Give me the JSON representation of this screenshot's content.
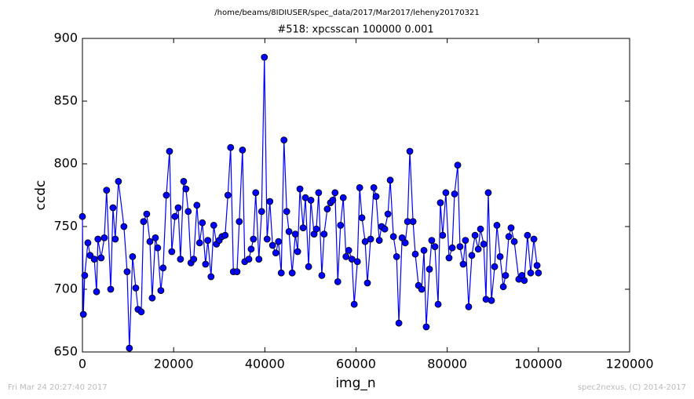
{
  "chart_data": {
    "type": "line",
    "suptitle": "/home/beams/8IDIUSER/spec_data/2017/Mar2017/leheny20170321",
    "title": "#518: xpcsscan 100000 0.001",
    "xlabel": "img_n",
    "ylabel": "ccdc",
    "timestamp": "Fri Mar 24 20:27:40 2017",
    "credit": "spec2nexus, (C) 2014-2017",
    "color": "#0000ff",
    "marker": "circle",
    "xlim": [
      0,
      120000
    ],
    "ylim": [
      650,
      900
    ],
    "xticks": [
      0,
      20000,
      40000,
      60000,
      80000,
      100000,
      120000
    ],
    "yticks": [
      650,
      700,
      750,
      800,
      850,
      900
    ],
    "x": [
      0,
      200,
      500,
      1200,
      1700,
      2600,
      3100,
      3400,
      4100,
      4800,
      5300,
      6200,
      6700,
      7200,
      7900,
      9100,
      9800,
      10300,
      11000,
      11700,
      12200,
      12900,
      13400,
      14100,
      14800,
      15300,
      16000,
      16500,
      17200,
      17700,
      18400,
      19100,
      19600,
      20300,
      21000,
      21500,
      22200,
      22700,
      23200,
      23800,
      24400,
      25100,
      25700,
      26300,
      27000,
      27500,
      28200,
      28800,
      29400,
      30000,
      30600,
      31300,
      31900,
      32500,
      33100,
      33900,
      34400,
      35100,
      35600,
      36500,
      37000,
      37500,
      38000,
      38700,
      39300,
      39900,
      40500,
      41100,
      41700,
      42400,
      43000,
      43600,
      44200,
      44800,
      45300,
      46000,
      46700,
      47200,
      47700,
      48400,
      48900,
      49600,
      50100,
      50800,
      51300,
      51800,
      52500,
      53000,
      53700,
      54400,
      54900,
      55400,
      56000,
      56600,
      57200,
      57800,
      58400,
      59100,
      59600,
      60300,
      60800,
      61300,
      62000,
      62500,
      63200,
      63900,
      64400,
      65100,
      65600,
      66300,
      67000,
      67500,
      68200,
      68900,
      69400,
      70100,
      70800,
      71300,
      71800,
      72500,
      73000,
      73700,
      74400,
      74900,
      75400,
      76100,
      76600,
      77300,
      78000,
      78500,
      79000,
      79700,
      80400,
      81100,
      81600,
      82300,
      82800,
      83500,
      84000,
      84700,
      85400,
      86100,
      86800,
      87300,
      88000,
      88500,
      89000,
      89700,
      90400,
      90900,
      91600,
      92300,
      92800,
      93500,
      94000,
      94700,
      95700,
      96400,
      96900,
      97600,
      98300,
      99000,
      99700,
      100000
    ],
    "values": [
      758,
      680,
      711,
      737,
      727,
      724,
      698,
      740,
      725,
      741,
      779,
      700,
      765,
      740,
      786,
      750,
      714,
      653,
      726,
      701,
      684,
      682,
      754,
      760,
      738,
      693,
      741,
      733,
      699,
      717,
      775,
      810,
      730,
      758,
      765,
      724,
      786,
      780,
      762,
      721,
      724,
      767,
      737,
      753,
      720,
      739,
      710,
      751,
      736,
      739,
      742,
      743,
      775,
      813,
      714,
      714,
      754,
      811,
      722,
      724,
      732,
      740,
      777,
      724,
      762,
      885,
      740,
      770,
      735,
      729,
      738,
      713,
      819,
      762,
      746,
      713,
      744,
      730,
      780,
      749,
      773,
      718,
      771,
      744,
      748,
      777,
      711,
      744,
      764,
      769,
      771,
      777,
      706,
      751,
      773,
      726,
      731,
      724,
      688,
      722,
      781,
      757,
      738,
      705,
      740,
      781,
      774,
      739,
      750,
      748,
      760,
      787,
      742,
      726,
      673,
      741,
      737,
      754,
      810,
      754,
      728,
      703,
      700,
      731,
      670,
      716,
      739,
      734,
      688,
      769,
      743,
      777,
      725,
      733,
      776,
      799,
      734,
      720,
      739,
      686,
      727,
      743,
      732,
      748,
      736,
      692,
      777,
      691,
      718,
      751,
      726,
      702,
      711,
      742,
      749,
      738,
      708,
      711,
      707,
      743,
      713,
      740,
      719,
      713
    ]
  }
}
